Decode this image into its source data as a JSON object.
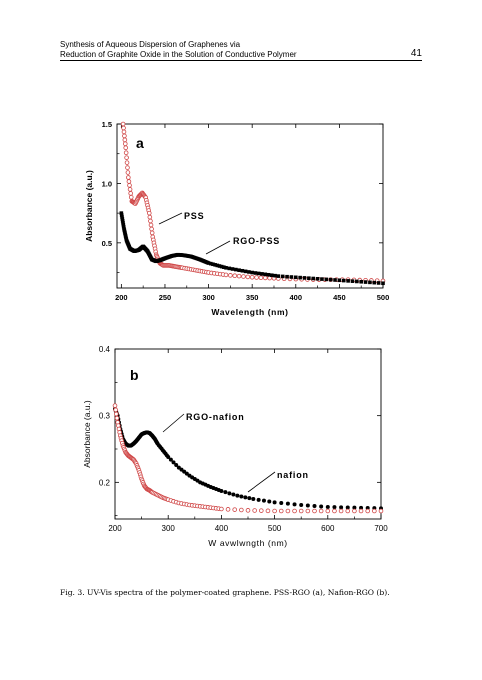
{
  "running_head": {
    "line1": "Synthesis of Aqueous Dispersion of Graphenes via",
    "line2": "Reduction of Graphite Oxide in the Solution of Conductive Polymer",
    "page_number": "41"
  },
  "caption": "Fig. 3. UV-Vis spectra of the polymer-coated graphene. PSS-RGO (a), Nafion-RGO (b).",
  "chart_data": [
    {
      "type": "line",
      "panel_label": "a",
      "xlabel": "Wavelength (nm)",
      "ylabel": "Absorbance (a.u.)",
      "xlim": [
        195,
        500
      ],
      "ylim": [
        0.12,
        1.5
      ],
      "xticks": [
        "200",
        "250",
        "300",
        "350",
        "400",
        "450",
        "500"
      ],
      "yticks": [
        "0.5",
        "1.0",
        "1.5"
      ],
      "annotations": [
        "PSS",
        "RGO-PSS"
      ],
      "series": [
        {
          "name": "PSS",
          "marker": "open-circle",
          "color": "#d04848",
          "x": [
            202,
            205,
            208,
            212,
            216,
            220,
            224,
            228,
            232,
            236,
            240,
            244,
            248,
            255,
            262,
            270,
            285,
            300,
            320,
            350,
            380,
            420,
            460,
            500
          ],
          "y": [
            1.5,
            1.3,
            1.05,
            0.85,
            0.83,
            0.89,
            0.92,
            0.88,
            0.75,
            0.55,
            0.4,
            0.33,
            0.31,
            0.31,
            0.3,
            0.29,
            0.27,
            0.25,
            0.23,
            0.21,
            0.2,
            0.19,
            0.19,
            0.18
          ]
        },
        {
          "name": "RGO-PSS",
          "marker": "filled-square",
          "color": "#000000",
          "x": [
            200,
            203,
            206,
            210,
            215,
            220,
            225,
            230,
            235,
            240,
            245,
            250,
            258,
            265,
            272,
            280,
            290,
            300,
            320,
            350,
            380,
            420,
            460,
            500
          ],
          "y": [
            0.75,
            0.62,
            0.52,
            0.45,
            0.43,
            0.44,
            0.47,
            0.43,
            0.36,
            0.345,
            0.355,
            0.37,
            0.39,
            0.4,
            0.395,
            0.385,
            0.36,
            0.33,
            0.29,
            0.25,
            0.22,
            0.2,
            0.18,
            0.16
          ]
        }
      ]
    },
    {
      "type": "line",
      "panel_label": "b",
      "xlabel": "W avwlwngth (nm)",
      "ylabel": "Absorbance (a.u.)",
      "xlim": [
        200,
        700
      ],
      "ylim": [
        0.145,
        0.4
      ],
      "xticks": [
        "200",
        "300",
        "400",
        "500",
        "600",
        "700"
      ],
      "yticks": [
        "0.2",
        "0.3",
        "0.4"
      ],
      "annotations": [
        "RGO-nafion",
        "nafion"
      ],
      "series": [
        {
          "name": "RGO-nafion",
          "marker": "filled-circle",
          "color": "#000000",
          "x": [
            200,
            205,
            210,
            215,
            220,
            225,
            230,
            235,
            240,
            245,
            250,
            255,
            260,
            265,
            270,
            275,
            280,
            290,
            300,
            320,
            340,
            360,
            380,
            400,
            430,
            460,
            500,
            550,
            600,
            650,
            700
          ],
          "y": [
            0.31,
            0.3,
            0.28,
            0.265,
            0.258,
            0.255,
            0.255,
            0.258,
            0.262,
            0.267,
            0.272,
            0.274,
            0.275,
            0.274,
            0.27,
            0.265,
            0.258,
            0.248,
            0.238,
            0.222,
            0.21,
            0.2,
            0.193,
            0.187,
            0.18,
            0.175,
            0.17,
            0.166,
            0.163,
            0.162,
            0.161
          ]
        },
        {
          "name": "nafion",
          "marker": "open-circle",
          "color": "#d04848",
          "x": [
            200,
            205,
            210,
            215,
            220,
            225,
            230,
            235,
            240,
            245,
            250,
            255,
            260,
            265,
            270,
            280,
            290,
            300,
            320,
            340,
            360,
            380,
            400,
            450,
            500,
            550,
            600,
            650,
            700
          ],
          "y": [
            0.315,
            0.29,
            0.27,
            0.255,
            0.245,
            0.24,
            0.237,
            0.234,
            0.228,
            0.218,
            0.205,
            0.195,
            0.19,
            0.188,
            0.185,
            0.181,
            0.177,
            0.174,
            0.169,
            0.166,
            0.164,
            0.162,
            0.16,
            0.158,
            0.157,
            0.157,
            0.157,
            0.157,
            0.157
          ]
        }
      ]
    }
  ]
}
